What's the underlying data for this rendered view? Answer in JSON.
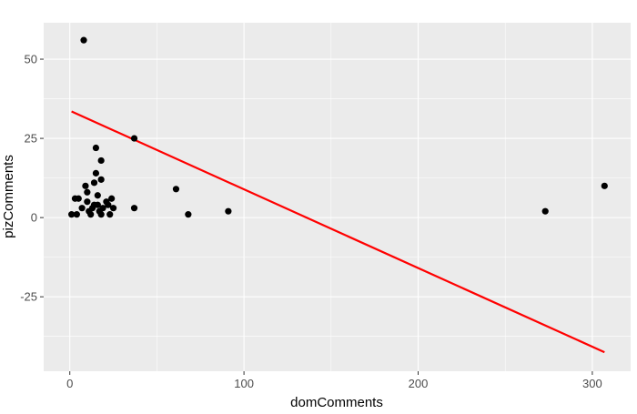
{
  "chart_data": {
    "type": "scatter",
    "title": "",
    "xlabel": "domComments",
    "ylabel": "pizComments",
    "xlim": [
      -15,
      322
    ],
    "ylim": [
      -48.5,
      61.5
    ],
    "x_ticks": [
      0,
      100,
      200,
      300
    ],
    "x_tick_labels": [
      "0",
      "100",
      "200",
      "300"
    ],
    "y_ticks": [
      -25,
      0,
      25,
      50
    ],
    "y_tick_labels": [
      "-25",
      "0",
      "25",
      "50"
    ],
    "grid": true,
    "legend": "none",
    "colors": {
      "panel": "#ebebeb",
      "grid": "#ffffff",
      "points": "#000000",
      "fit_line": "#ff0000"
    },
    "points": [
      {
        "x": 8,
        "y": 56
      },
      {
        "x": 1,
        "y": 1
      },
      {
        "x": 4,
        "y": 1
      },
      {
        "x": 3,
        "y": 6
      },
      {
        "x": 5,
        "y": 6
      },
      {
        "x": 7,
        "y": 3
      },
      {
        "x": 9,
        "y": 10
      },
      {
        "x": 10,
        "y": 8
      },
      {
        "x": 10,
        "y": 5
      },
      {
        "x": 11,
        "y": 2
      },
      {
        "x": 12,
        "y": 1
      },
      {
        "x": 13,
        "y": 3
      },
      {
        "x": 14,
        "y": 11
      },
      {
        "x": 15,
        "y": 22
      },
      {
        "x": 15,
        "y": 14
      },
      {
        "x": 16,
        "y": 7
      },
      {
        "x": 16,
        "y": 4
      },
      {
        "x": 17,
        "y": 2
      },
      {
        "x": 18,
        "y": 18
      },
      {
        "x": 18,
        "y": 12
      },
      {
        "x": 18,
        "y": 1
      },
      {
        "x": 19,
        "y": 3
      },
      {
        "x": 14,
        "y": 4
      },
      {
        "x": 21,
        "y": 5
      },
      {
        "x": 22,
        "y": 4
      },
      {
        "x": 23,
        "y": 1
      },
      {
        "x": 24,
        "y": 6
      },
      {
        "x": 25,
        "y": 3
      },
      {
        "x": 37,
        "y": 25
      },
      {
        "x": 37,
        "y": 3
      },
      {
        "x": 61,
        "y": 9
      },
      {
        "x": 68,
        "y": 1
      },
      {
        "x": 91,
        "y": 2
      },
      {
        "x": 273,
        "y": 2
      },
      {
        "x": 307,
        "y": 10
      }
    ],
    "fit_line": {
      "x": [
        1,
        307
      ],
      "y": [
        33.5,
        -42.5
      ]
    }
  }
}
